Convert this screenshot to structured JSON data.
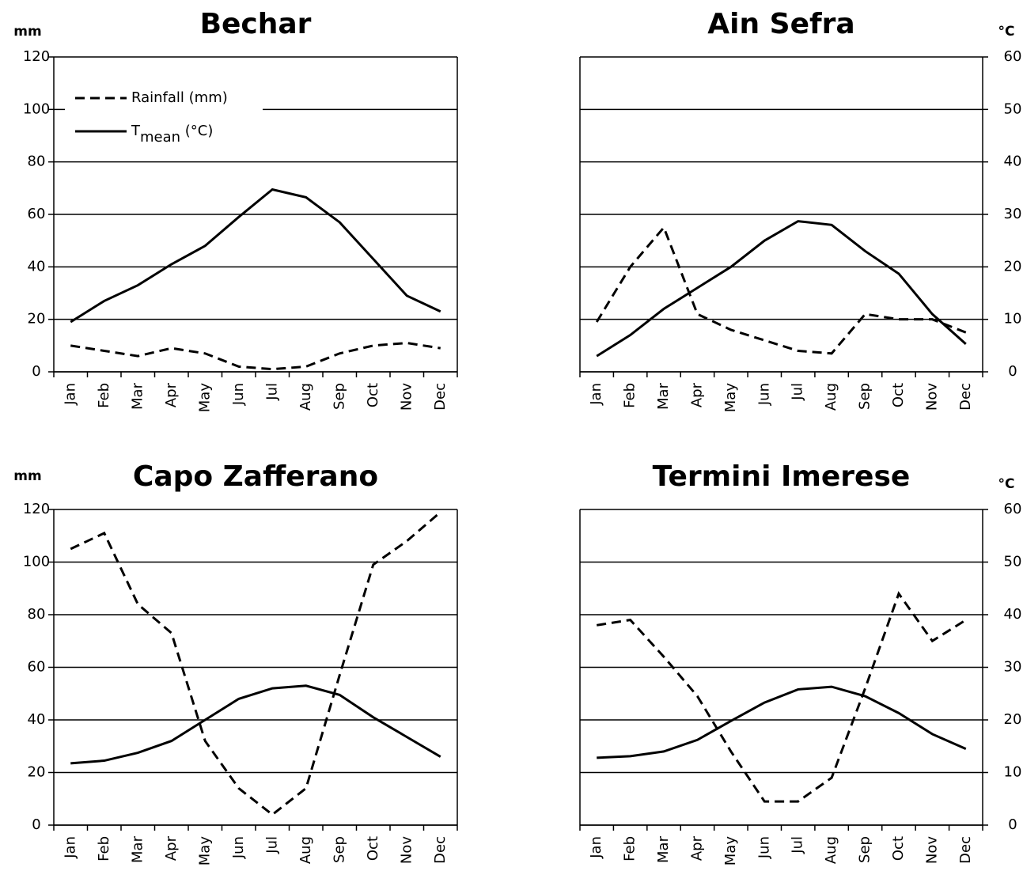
{
  "chart_data": [
    {
      "type": "line",
      "title": "Bechar",
      "y_label": "mm",
      "categories": [
        "Jan",
        "Feb",
        "Mar",
        "Apr",
        "May",
        "Jun",
        "Jul",
        "Aug",
        "Sep",
        "Oct",
        "Nov",
        "Dec"
      ],
      "ylim": [
        0,
        120
      ],
      "yticks": [
        0,
        20,
        40,
        60,
        80,
        100,
        120
      ],
      "y2lim": [
        0,
        60
      ],
      "grid": true,
      "legend": "upper left",
      "series": [
        {
          "name": "Rainfall (mm)",
          "color": "#000000",
          "linestyle": "dashed",
          "values": [
            10,
            8,
            6,
            9,
            7,
            2,
            1,
            2,
            7,
            10,
            11,
            9
          ]
        },
        {
          "name": "Tmean (°C)",
          "color": "#000000",
          "linestyle": "solid",
          "axis": "y2",
          "values": [
            9.5,
            13.5,
            16.5,
            20.5,
            24,
            29.5,
            34.75,
            33.25,
            28.5,
            21.5,
            14.5,
            11.5
          ]
        }
      ]
    },
    {
      "type": "line",
      "title": "Ain Sefra",
      "y2_label": "°C",
      "categories": [
        "Jan",
        "Feb",
        "Mar",
        "Apr",
        "May",
        "Jun",
        "Jul",
        "Aug",
        "Sep",
        "Oct",
        "Nov",
        "Dec"
      ],
      "ylim": [
        0,
        120
      ],
      "y2lim": [
        0,
        60
      ],
      "y2ticks": [
        0,
        10,
        20,
        30,
        40,
        50,
        60
      ],
      "grid": true,
      "series": [
        {
          "color": "#000000",
          "linestyle": "dashed",
          "values": [
            19,
            40,
            55,
            22,
            16,
            12,
            8,
            7,
            22,
            20,
            20,
            15
          ]
        },
        {
          "color": "#000000",
          "linestyle": "solid",
          "axis": "y2",
          "values": [
            3,
            7,
            12,
            16,
            20,
            25,
            28.7,
            28,
            23,
            18.7,
            11,
            5.3
          ]
        }
      ]
    },
    {
      "type": "line",
      "title": "Capo Zafferano",
      "y_label": "mm",
      "categories": [
        "Jan",
        "Feb",
        "Mar",
        "Apr",
        "May",
        "Jun",
        "Jul",
        "Aug",
        "Sep",
        "Oct",
        "Nov",
        "Dec"
      ],
      "ylim": [
        0,
        120
      ],
      "yticks": [
        0,
        20,
        40,
        60,
        80,
        100,
        120
      ],
      "y2lim": [
        0,
        60
      ],
      "grid": true,
      "series": [
        {
          "color": "#000000",
          "linestyle": "dashed",
          "values": [
            105,
            111,
            84,
            73,
            32,
            14,
            4,
            14,
            57,
            99,
            108,
            119
          ]
        },
        {
          "color": "#000000",
          "linestyle": "solid",
          "axis": "y2",
          "values": [
            11.75,
            12.25,
            13.75,
            16,
            20,
            24,
            26,
            26.5,
            24.75,
            20.5,
            16.75,
            13
          ]
        }
      ]
    },
    {
      "type": "line",
      "title": "Termini Imerese",
      "y2_label": "°C",
      "categories": [
        "Jan",
        "Feb",
        "Mar",
        "Apr",
        "May",
        "Jun",
        "Jul",
        "Aug",
        "Sep",
        "Oct",
        "Nov",
        "Dec"
      ],
      "ylim": [
        0,
        120
      ],
      "y2lim": [
        0,
        60
      ],
      "y2ticks": [
        0,
        10,
        20,
        30,
        40,
        50,
        60
      ],
      "grid": true,
      "series": [
        {
          "color": "#000000",
          "linestyle": "dashed",
          "values": [
            76,
            78,
            64,
            49,
            28,
            9,
            9,
            18,
            52,
            88,
            70,
            78
          ]
        },
        {
          "color": "#000000",
          "linestyle": "solid",
          "axis": "y2",
          "values": [
            12.8,
            13.1,
            14,
            16.2,
            19.8,
            23.3,
            25.8,
            26.3,
            24.5,
            21.3,
            17.3,
            14.5
          ]
        }
      ]
    }
  ]
}
